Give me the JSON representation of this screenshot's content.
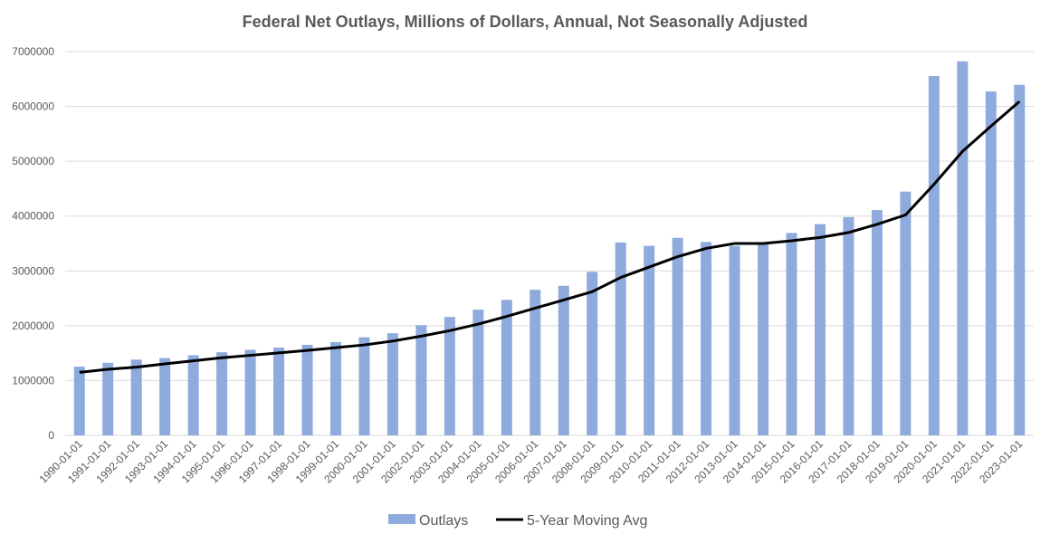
{
  "chart_data": {
    "type": "bar",
    "title": "Federal Net Outlays, Millions of Dollars, Annual, Not Seasonally Adjusted",
    "xlabel": "",
    "ylabel": "",
    "ylim": [
      0,
      7000000
    ],
    "yticks": [
      0,
      1000000,
      2000000,
      3000000,
      4000000,
      5000000,
      6000000,
      7000000
    ],
    "grid": true,
    "legend_position": "bottom",
    "categories": [
      "1990-01-01",
      "1991-01-01",
      "1992-01-01",
      "1993-01-01",
      "1994-01-01",
      "1995-01-01",
      "1996-01-01",
      "1997-01-01",
      "1998-01-01",
      "1999-01-01",
      "2000-01-01",
      "2001-01-01",
      "2002-01-01",
      "2003-01-01",
      "2004-01-01",
      "2005-01-01",
      "2006-01-01",
      "2007-01-01",
      "2008-01-01",
      "2009-01-01",
      "2010-01-01",
      "2011-01-01",
      "2012-01-01",
      "2013-01-01",
      "2014-01-01",
      "2015-01-01",
      "2016-01-01",
      "2017-01-01",
      "2018-01-01",
      "2019-01-01",
      "2020-01-01",
      "2021-01-01",
      "2022-01-01",
      "2023-01-01"
    ],
    "series": [
      {
        "name": "Outlays",
        "type": "bar",
        "color": "#8faadc",
        "values": [
          1253000,
          1324000,
          1382000,
          1410000,
          1462000,
          1516000,
          1561000,
          1601000,
          1652000,
          1702000,
          1789000,
          1863000,
          2011000,
          2160000,
          2293000,
          2472000,
          2655000,
          2729000,
          2983000,
          3518000,
          3457000,
          3603000,
          3527000,
          3455000,
          3506000,
          3692000,
          3853000,
          3982000,
          4109000,
          4447000,
          6554000,
          6822000,
          6273000,
          6394000
        ]
      },
      {
        "name": "5-Year Moving Avg",
        "type": "line",
        "color": "#000000",
        "values": [
          1150000,
          1205000,
          1245000,
          1305000,
          1360000,
          1415000,
          1460000,
          1505000,
          1550000,
          1600000,
          1650000,
          1720000,
          1810000,
          1910000,
          2030000,
          2170000,
          2320000,
          2470000,
          2620000,
          2880000,
          3070000,
          3260000,
          3410000,
          3500000,
          3500000,
          3550000,
          3610000,
          3700000,
          3850000,
          4020000,
          4580000,
          5180000,
          5640000,
          6090000
        ]
      }
    ]
  },
  "colors": {
    "bar": "#8faadc",
    "line": "#000000",
    "grid": "#d9d9d9",
    "text": "#595959"
  }
}
